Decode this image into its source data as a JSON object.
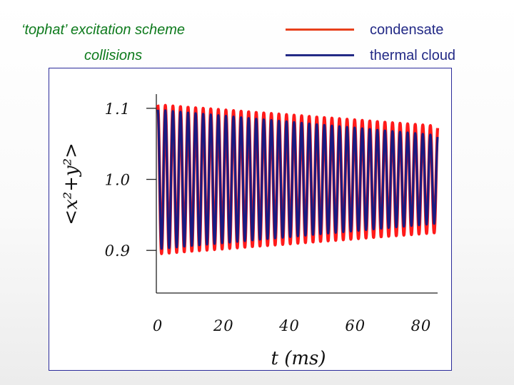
{
  "header": {
    "scheme": "‘tophat’ excitation scheme",
    "mode": "collisions"
  },
  "colors": {
    "condensate": "#ff1a1a",
    "thermal": "#1a1a80",
    "header_green": "#0d7a1c",
    "legend_blue": "#232a86",
    "frame": "#2b2b9a"
  },
  "chart_data": {
    "type": "line",
    "xlabel": "t (ms)",
    "ylabel": "<x²+y²>",
    "xlim": [
      0,
      85
    ],
    "ylim": [
      0.84,
      1.12
    ],
    "x_ticks": [
      0,
      20,
      40,
      60,
      80
    ],
    "x_tick_labels": [
      "0",
      "20",
      "40",
      "60",
      "80"
    ],
    "y_ticks": [
      0.9,
      1.0,
      1.1
    ],
    "y_tick_labels": [
      "0.9",
      "1.0",
      "1.1"
    ],
    "legend_position": "top-right",
    "grid": false,
    "series": [
      {
        "name": "condensate",
        "color": "#ff1a1a",
        "oscillation": {
          "mean": 1.0,
          "period_ms": 2.3,
          "amplitude_start": 0.105,
          "amplitude_end": 0.075,
          "t_start": 0,
          "t_end": 85
        }
      },
      {
        "name": "thermal cloud",
        "color": "#1a1a80",
        "oscillation": {
          "mean": 1.0,
          "period_ms": 2.3,
          "amplitude_start": 0.098,
          "amplitude_end": 0.062,
          "t_start": 0,
          "t_end": 85
        }
      }
    ]
  }
}
